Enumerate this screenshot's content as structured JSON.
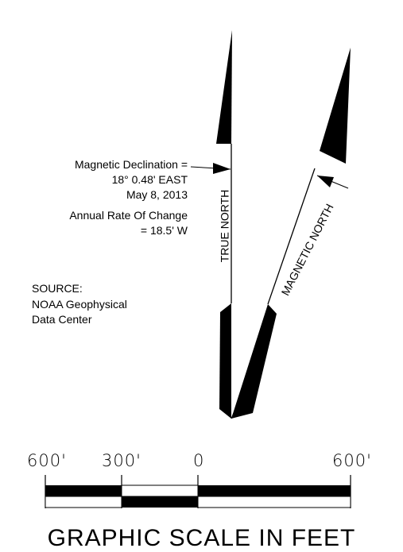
{
  "declination": {
    "label": "Magnetic Declination =",
    "value": "18° 0.48' EAST",
    "date": "May 8, 2013",
    "rate_label": "Annual Rate Of Change",
    "rate_value": "= 18.5' W"
  },
  "source": {
    "line1": "SOURCE:",
    "line2": "NOAA Geophysical",
    "line3": "Data Center"
  },
  "arrows": {
    "true_north": "TRUE NORTH",
    "magnetic_north": "MAGNETIC NORTH"
  },
  "scale": {
    "labels": [
      "600'",
      "300'",
      "0",
      "600'"
    ],
    "title": "GRAPHIC SCALE IN FEET"
  },
  "colors": {
    "ink": "#000000",
    "background": "#ffffff"
  }
}
